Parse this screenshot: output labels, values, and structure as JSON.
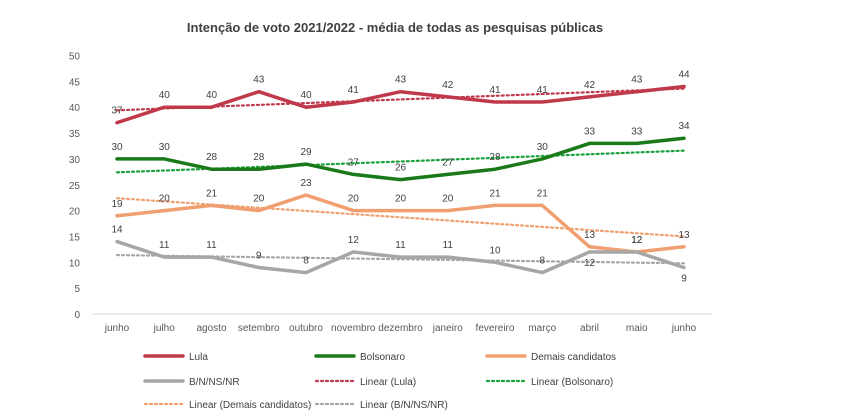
{
  "chart_data": {
    "type": "line",
    "title": "Intenção de voto 2021/2022 - média de todas as pesquisas públicas",
    "xlabel": "",
    "ylabel": "",
    "ylim": [
      0,
      50
    ],
    "yticks": [
      0,
      5,
      10,
      15,
      20,
      25,
      30,
      35,
      40,
      45,
      50
    ],
    "grid": false,
    "legend_position": "bottom",
    "categories": [
      "junho",
      "julho",
      "agosto",
      "setembro",
      "outubro",
      "novembro",
      "dezembro",
      "janeiro",
      "fevereiro",
      "março",
      "abril",
      "maio",
      "junho"
    ],
    "series": [
      {
        "name": "Lula",
        "color": "#c0394b",
        "style": "solid",
        "values": [
          37,
          40,
          40,
          43,
          40,
          41,
          43,
          42,
          41,
          41,
          42,
          43,
          44
        ]
      },
      {
        "name": "Bolsonaro",
        "color": "#1a7a1a",
        "style": "solid",
        "values": [
          30,
          30,
          28,
          28,
          29,
          27,
          26,
          27,
          28,
          30,
          33,
          33,
          34
        ]
      },
      {
        "name": "Demais candidatos",
        "color": "#f0a070",
        "style": "solid",
        "values": [
          19,
          20,
          21,
          20,
          23,
          20,
          20,
          20,
          21,
          21,
          13,
          12,
          13
        ]
      },
      {
        "name": "B/N/NS/NR",
        "color": "#a6a6a6",
        "style": "solid",
        "values": [
          14,
          11,
          11,
          9,
          8,
          12,
          11,
          11,
          10,
          8,
          12,
          12,
          9
        ]
      }
    ],
    "trendlines": [
      {
        "name": "Linear (Lula)",
        "color": "#c0394b",
        "style": "dotted",
        "start": 39.4,
        "end": 43.6
      },
      {
        "name": "Linear (Bolsonaro)",
        "color": "#1aa03a",
        "style": "dotted",
        "start": 27.4,
        "end": 31.6
      },
      {
        "name": "Linear (Demais candidatos)",
        "color": "#f0a070",
        "style": "dotted",
        "start": 22.4,
        "end": 15.0
      },
      {
        "name": "Linear (B/N/NS/NR)",
        "color": "#a6a6a6",
        "style": "dotted",
        "start": 11.4,
        "end": 9.8
      }
    ],
    "data_labels": {
      "Lula": [
        "37",
        "40",
        "40",
        "43",
        "40",
        "41",
        "43",
        "42",
        "41",
        "41",
        "42",
        "43",
        "44"
      ],
      "Bolsonaro": [
        "30",
        "30",
        "28",
        "28",
        "29",
        "27",
        "26",
        "27",
        "28",
        "30",
        "33",
        "33",
        "34"
      ],
      "Demais candidatos": [
        "19",
        "20",
        "21",
        "20",
        "23",
        "20",
        "20",
        "20",
        "21",
        "21",
        "13",
        "12",
        "13"
      ],
      "B/N/NS/NR": [
        "14",
        "11",
        "11",
        "9",
        "8",
        "12",
        "11",
        "11",
        "10",
        "8",
        "12",
        "12",
        "9"
      ]
    },
    "legend": [
      "Lula",
      "Bolsonaro",
      "Demais candidatos",
      "B/N/NS/NR",
      "Linear (Lula)",
      "Linear (Bolsonaro)",
      "Linear (Demais candidatos)",
      "Linear (B/N/NS/NR)"
    ]
  }
}
